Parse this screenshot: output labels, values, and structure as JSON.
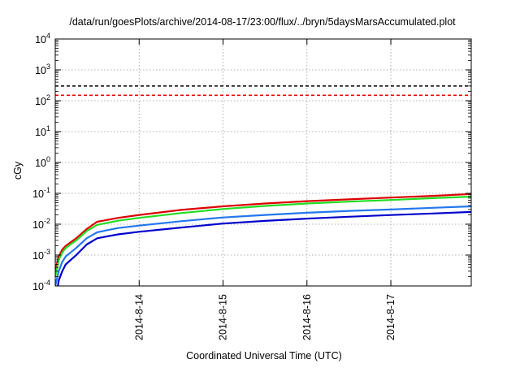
{
  "chart_data": {
    "type": "line",
    "title": "/data/run/goesPlots/archive/2014-08-17/23:00/flux/../bryn/5daysMarsAccumulated.plot",
    "xlabel": "Coordinated Universal Time (UTC)",
    "ylabel": "cGy",
    "y_scale": "log",
    "ylim": [
      0.0001,
      10000
    ],
    "xlim": [
      "2014-08-13 00:00",
      "2014-08-17 23:00"
    ],
    "grid": true,
    "legend": "none",
    "x_ticks": [
      "2014-8-14",
      "2014-8-15",
      "2014-8-16",
      "2014-8-17"
    ],
    "x_tick_values": [
      "2014-08-14 00:00",
      "2014-08-15 00:00",
      "2014-08-16 00:00",
      "2014-08-17 00:00"
    ],
    "y_ticks": [
      {
        "base": "10",
        "exp": "-4",
        "value": 0.0001
      },
      {
        "base": "10",
        "exp": "-3",
        "value": 0.001
      },
      {
        "base": "10",
        "exp": "-2",
        "value": 0.01
      },
      {
        "base": "10",
        "exp": "-1",
        "value": 0.1
      },
      {
        "base": "10",
        "exp": "0",
        "value": 1
      },
      {
        "base": "10",
        "exp": "1",
        "value": 10
      },
      {
        "base": "10",
        "exp": "2",
        "value": 100
      },
      {
        "base": "10",
        "exp": "3",
        "value": 1000
      },
      {
        "base": "10",
        "exp": "4",
        "value": 10000
      }
    ],
    "reference_lines": [
      {
        "value": 300,
        "color": "#000000",
        "style": "dashed"
      },
      {
        "value": 150,
        "color": "#ee0000",
        "style": "dashed"
      }
    ],
    "series": [
      {
        "color": "#dd0000",
        "x": [
          "2014-08-13 00:00",
          "2014-08-13 01:00",
          "2014-08-13 02:00",
          "2014-08-13 03:00",
          "2014-08-13 06:00",
          "2014-08-13 09:00",
          "2014-08-13 12:00",
          "2014-08-13 18:00",
          "2014-08-14 00:00",
          "2014-08-14 12:00",
          "2014-08-15 00:00",
          "2014-08-15 12:00",
          "2014-08-16 00:00",
          "2014-08-16 12:00",
          "2014-08-17 00:00",
          "2014-08-17 12:00",
          "2014-08-17 23:00"
        ],
        "y": [
          0.0003,
          0.0009,
          0.0015,
          0.002,
          0.0035,
          0.007,
          0.012,
          0.016,
          0.02,
          0.029,
          0.038,
          0.047,
          0.056,
          0.064,
          0.073,
          0.083,
          0.095
        ]
      },
      {
        "color": "#22dd22",
        "x": [
          "2014-08-13 00:00",
          "2014-08-13 01:00",
          "2014-08-13 02:00",
          "2014-08-13 03:00",
          "2014-08-13 06:00",
          "2014-08-13 09:00",
          "2014-08-13 12:00",
          "2014-08-13 18:00",
          "2014-08-14 00:00",
          "2014-08-14 12:00",
          "2014-08-15 00:00",
          "2014-08-15 12:00",
          "2014-08-16 00:00",
          "2014-08-16 12:00",
          "2014-08-17 00:00",
          "2014-08-17 12:00",
          "2014-08-17 23:00"
        ],
        "y": [
          0.0002,
          0.0007,
          0.0012,
          0.0017,
          0.003,
          0.006,
          0.0095,
          0.013,
          0.016,
          0.023,
          0.031,
          0.039,
          0.047,
          0.054,
          0.061,
          0.07,
          0.078
        ]
      },
      {
        "color": "#2277ee",
        "x": [
          "2014-08-13 00:00",
          "2014-08-13 01:00",
          "2014-08-13 02:00",
          "2014-08-13 03:00",
          "2014-08-13 06:00",
          "2014-08-13 09:00",
          "2014-08-13 12:00",
          "2014-08-13 18:00",
          "2014-08-14 00:00",
          "2014-08-14 12:00",
          "2014-08-15 00:00",
          "2014-08-15 12:00",
          "2014-08-16 00:00",
          "2014-08-16 12:00",
          "2014-08-17 00:00",
          "2014-08-17 12:00",
          "2014-08-17 23:00"
        ],
        "y": [
          0.0001,
          0.0003,
          0.0006,
          0.0009,
          0.0017,
          0.0035,
          0.0055,
          0.0075,
          0.009,
          0.0125,
          0.0165,
          0.02,
          0.0235,
          0.027,
          0.03,
          0.034,
          0.038
        ]
      },
      {
        "color": "#0000cc",
        "x": [
          "2014-08-13 00:00",
          "2014-08-13 01:00",
          "2014-08-13 02:00",
          "2014-08-13 03:00",
          "2014-08-13 06:00",
          "2014-08-13 09:00",
          "2014-08-13 12:00",
          "2014-08-13 18:00",
          "2014-08-14 00:00",
          "2014-08-14 12:00",
          "2014-08-15 00:00",
          "2014-08-15 12:00",
          "2014-08-16 00:00",
          "2014-08-16 12:00",
          "2014-08-17 00:00",
          "2014-08-17 12:00",
          "2014-08-17 23:00"
        ],
        "y": [
          3e-05,
          0.00015,
          0.0003,
          0.0005,
          0.001,
          0.0022,
          0.0035,
          0.0047,
          0.0057,
          0.0078,
          0.0105,
          0.0128,
          0.0152,
          0.0175,
          0.0198,
          0.0222,
          0.025
        ]
      }
    ]
  }
}
